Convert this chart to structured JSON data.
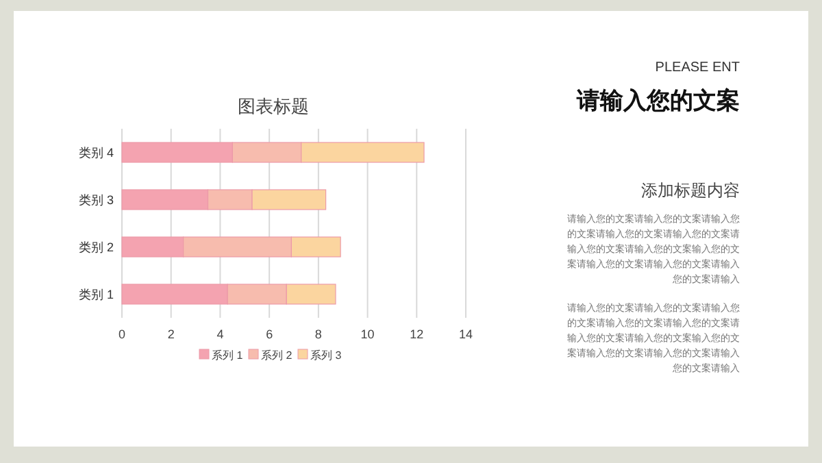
{
  "chart_data": {
    "type": "bar",
    "orientation": "horizontal",
    "stacked": true,
    "title": "图表标题",
    "categories": [
      "类别 4",
      "类别 3",
      "类别 2",
      "类别 1"
    ],
    "series": [
      {
        "name": "系列 1",
        "color": "#f4a3b0",
        "values": [
          4.5,
          3.5,
          2.5,
          4.3
        ]
      },
      {
        "name": "系列 2",
        "color": "#f7bcae",
        "values": [
          2.8,
          1.8,
          4.4,
          2.4
        ]
      },
      {
        "name": "系列 3",
        "color": "#fbd59f",
        "values": [
          5,
          3,
          2,
          2
        ]
      }
    ],
    "xlim": [
      0,
      14
    ],
    "xticks": [
      0,
      2,
      4,
      6,
      8,
      10,
      12,
      14
    ],
    "grid": "x",
    "legend": "bottom",
    "annotations": [
      "PLEASE ENT",
      "请输入您的文案",
      "添加标题内容",
      "请输入您的文案请输入您的文案请输入您的文案请输入您的文案请输入您的文案请输入您的文案请输入您的文案输入您的文案请输入您的文案请输入您的文案请输入您的文案请输入",
      "请输入您的文案请输入您的文案请输入您的文案请输入您的文案请输入您的文案请输入您的文案请输入您的文案输入您的文案请输入您的文案请输入您的文案请输入您的文案请输入"
    ]
  }
}
